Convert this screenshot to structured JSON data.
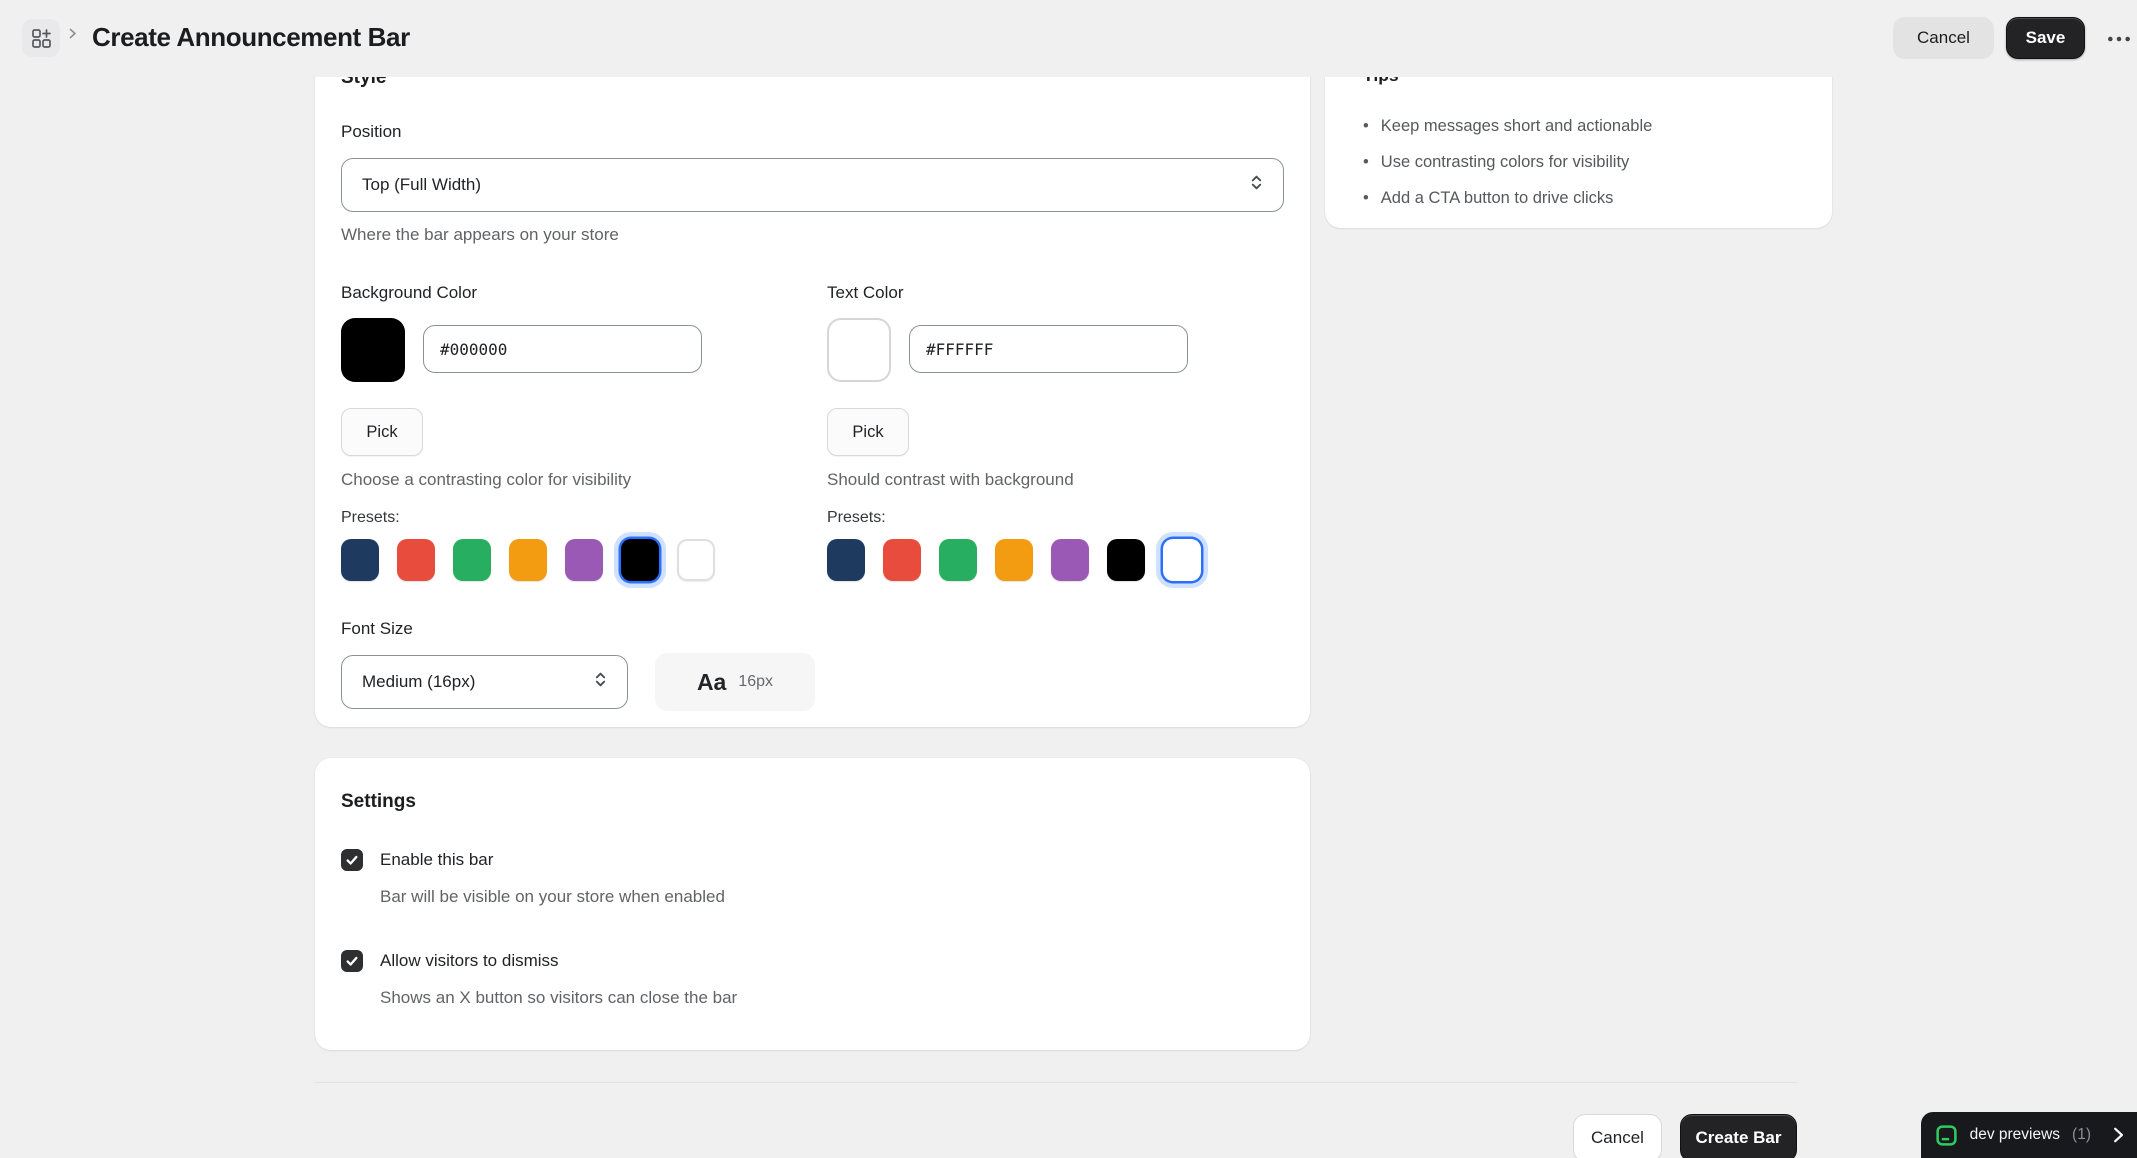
{
  "header": {
    "breadcrumb_title": "Create Announcement Bar",
    "cancel_label": "Cancel",
    "save_label": "Save"
  },
  "style_card": {
    "heading": "Style",
    "position": {
      "label": "Position",
      "value": "Top (Full Width)",
      "helper": "Where the bar appears on your store"
    },
    "background_color": {
      "label": "Background Color",
      "hex": "#000000",
      "pick_label": "Pick",
      "helper": "Choose a contrasting color for visibility"
    },
    "text_color": {
      "label": "Text Color",
      "hex": "#FFFFFF",
      "pick_label": "Pick",
      "helper": "Should contrast with background"
    },
    "presets": {
      "label": "Presets:",
      "colors": [
        "#1e3a5f",
        "#e74c3c",
        "#27ae60",
        "#f39c12",
        "#9b59b6",
        "#000000",
        "#ffffff"
      ],
      "background_selected_index": 5,
      "text_selected_index": 6
    },
    "font_size": {
      "label": "Font Size",
      "value": "Medium (16px)",
      "preview_letters": "Aa",
      "preview_size": "16px"
    }
  },
  "settings_card": {
    "heading": "Settings",
    "options": [
      {
        "label": "Enable this bar",
        "helper": "Bar will be visible on your store when enabled",
        "checked": true
      },
      {
        "label": "Allow visitors to dismiss",
        "helper": "Shows an X button so visitors can close the bar",
        "checked": true
      }
    ]
  },
  "tips_card": {
    "heading": "Tips",
    "items": [
      "Keep messages short and actionable",
      "Use contrasting colors for visibility",
      "Add a CTA button to drive clicks"
    ]
  },
  "footer": {
    "cancel_label": "Cancel",
    "submit_label": "Create Bar"
  },
  "dev_badge": {
    "label": "dev previews",
    "count": "(1)"
  },
  "icons": {
    "app": "grid-plus-icon",
    "breadcrumb": "chevron-right-icon",
    "select": "updown-chevron-icon",
    "overflow": "ellipsis-icon",
    "checkbox": "check-icon",
    "dev_badge": "panel-bottom-icon",
    "dev_badge_arrow": "chevron-right-icon"
  },
  "colors": {
    "accent_ring": "#2970ff",
    "badge_green": "#2ecc5f",
    "page_background": "#f0f0f1",
    "save_button": "#232325"
  }
}
